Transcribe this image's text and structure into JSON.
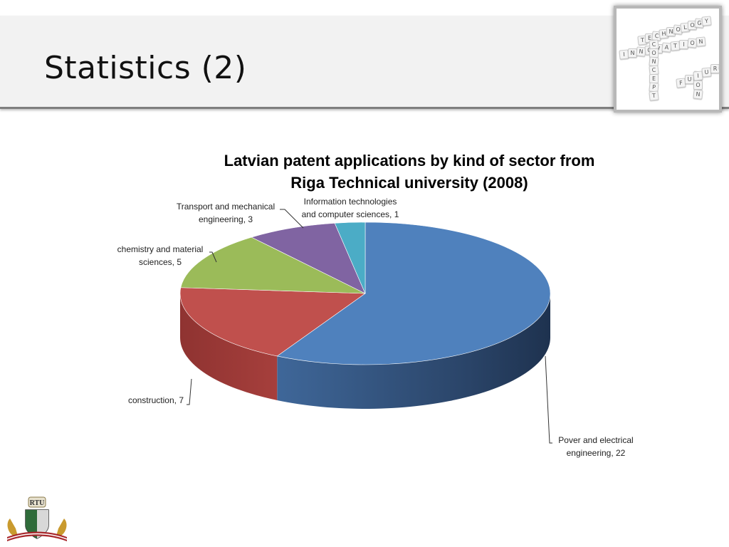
{
  "slide": {
    "title": "Statistics (2)"
  },
  "corner_image": {
    "words": [
      {
        "text": "TECHNOLOGY",
        "dir": "diag"
      },
      {
        "text": "INNOVATION",
        "dir": "h"
      },
      {
        "text": "CONCEPT",
        "dir": "v"
      },
      {
        "text": "FUTURE",
        "dir": "diag"
      },
      {
        "text": "ION",
        "dir": "v"
      }
    ]
  },
  "logo": {
    "text": "RTU"
  },
  "chart_data": {
    "type": "pie",
    "title": "Latvian patent applications by kind of sector  from Riga Technical university (2008)",
    "title_lines": [
      "Latvian patent applications by kind of sector  from",
      "Riga Technical university (2008)"
    ],
    "slices": [
      {
        "name": "Pover and electrical engineering",
        "value": 22,
        "color": "#4f81bd",
        "label_lines": [
          "Pover and electrical",
          "engineering, 22"
        ]
      },
      {
        "name": "construction",
        "value": 7,
        "color": "#c0504d",
        "label_lines": [
          "construction, 7"
        ]
      },
      {
        "name": "chemistry and material sciences",
        "value": 5,
        "color": "#9bbb59",
        "label_lines": [
          "chemistry and material",
          "sciences, 5"
        ]
      },
      {
        "name": "Transport and mechanical engineering",
        "value": 3,
        "color": "#8064a2",
        "label_lines": [
          "Transport and mechanical",
          "engineering, 3"
        ]
      },
      {
        "name": "Information technologies and computer sciences",
        "value": 1,
        "color": "#4bacc6",
        "label_lines": [
          "Information technologies",
          "and computer sciences, 1"
        ]
      }
    ],
    "start_angle_deg": 90,
    "direction": "clockwise",
    "style": "3d-exploded-none"
  }
}
